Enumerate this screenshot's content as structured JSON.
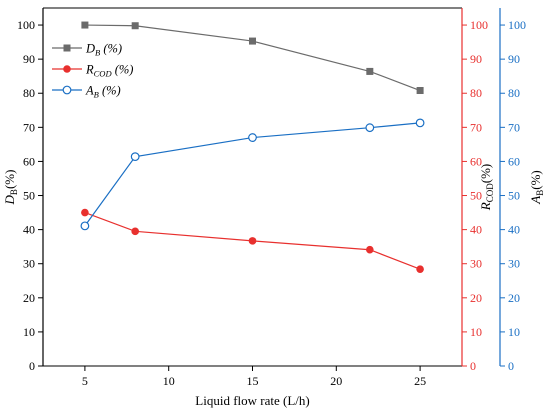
{
  "chart_data": {
    "type": "line",
    "x": [
      5,
      8,
      15,
      22,
      25
    ],
    "xlabel": "Liquid flow rate (L/h)",
    "xlim": [
      2.5,
      27.5
    ],
    "xticks": [
      5,
      10,
      15,
      20,
      25
    ],
    "axes": {
      "left": {
        "label_main": "D",
        "label_sub": "B",
        "label_suffix": "(%)",
        "ylim": [
          0,
          105
        ],
        "ticks": [
          0,
          10,
          20,
          30,
          40,
          50,
          60,
          70,
          80,
          90,
          100
        ],
        "color": "#000000"
      },
      "right1": {
        "label_main": "R",
        "label_sub": "COD",
        "label_suffix": "(%)",
        "ylim": [
          0,
          105
        ],
        "ticks": [
          0,
          10,
          20,
          30,
          40,
          50,
          60,
          70,
          80,
          90,
          100
        ],
        "color": "#e8302e"
      },
      "right2": {
        "label_main": "A",
        "label_sub": "B",
        "label_suffix": "(%)",
        "ylim": [
          0,
          105
        ],
        "ticks": [
          0,
          10,
          20,
          30,
          40,
          50,
          60,
          70,
          80,
          90,
          100
        ],
        "color": "#1a6fc4"
      }
    },
    "series": [
      {
        "name_main": "D",
        "name_sub": "B",
        "name_suffix": " (%)",
        "values": [
          100,
          99.8,
          95.3,
          86.4,
          80.8
        ],
        "color": "#6b6b6b",
        "marker": "square",
        "axis": "left"
      },
      {
        "name_main": "R",
        "name_sub": "COD",
        "name_suffix": " (%)",
        "values": [
          45,
          39.5,
          36.7,
          34.1,
          28.4
        ],
        "color": "#e8302e",
        "marker": "circle",
        "axis": "right1"
      },
      {
        "name_main": "A",
        "name_sub": "B",
        "name_suffix": " (%)",
        "values": [
          41.1,
          61.4,
          67,
          69.9,
          71.3
        ],
        "color": "#1a6fc4",
        "marker": "open-circle",
        "axis": "right2"
      }
    ],
    "legend": "top-left",
    "grid": false
  }
}
